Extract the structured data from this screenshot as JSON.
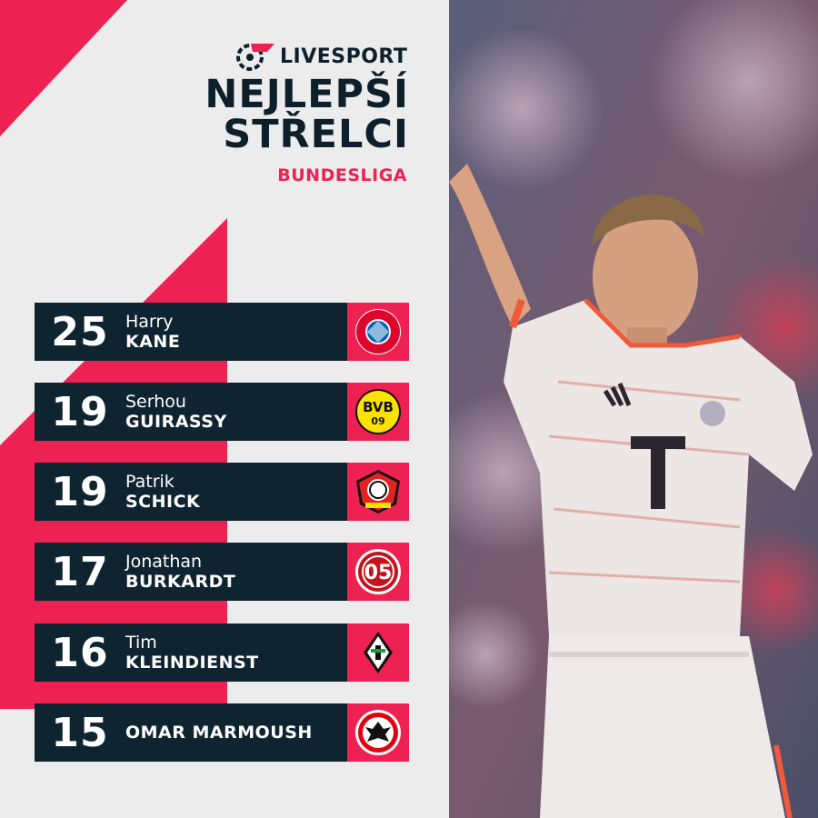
{
  "brand": {
    "name": "LIVESPORT",
    "logo_icon": "livesport-logo-icon"
  },
  "title": {
    "line1": "NEJLEPŠÍ",
    "line2": "STŘELCI"
  },
  "subtitle": "BUNDESLIGA",
  "colors": {
    "accent": "#ee2153",
    "navy": "#0f2431",
    "background": "#ececec"
  },
  "players": [
    {
      "goals": "25",
      "first": "Harry",
      "last": "KANE",
      "club_icon": "bayern-munchen-crest-icon"
    },
    {
      "goals": "19",
      "first": "Serhou",
      "last": "GUIRASSY",
      "club_icon": "bvb-09-crest-icon"
    },
    {
      "goals": "19",
      "first": "Patrik",
      "last": "SCHICK",
      "club_icon": "bayer-leverkusen-crest-icon"
    },
    {
      "goals": "17",
      "first": "Jonathan",
      "last": "BURKARDT",
      "club_icon": "mainz-05-crest-icon"
    },
    {
      "goals": "16",
      "first": "Tim",
      "last": "KLEINDIENST",
      "club_icon": "monchengladbach-crest-icon"
    },
    {
      "goals": "15",
      "first": "",
      "last": "OMAR MARMOUSH",
      "club_icon": "eintracht-frankfurt-crest-icon"
    }
  ],
  "logo_texts": {
    "bvb": "BVB",
    "bvb_year": "09",
    "mainz": "05"
  },
  "photo": {
    "subject": "player-photo"
  }
}
